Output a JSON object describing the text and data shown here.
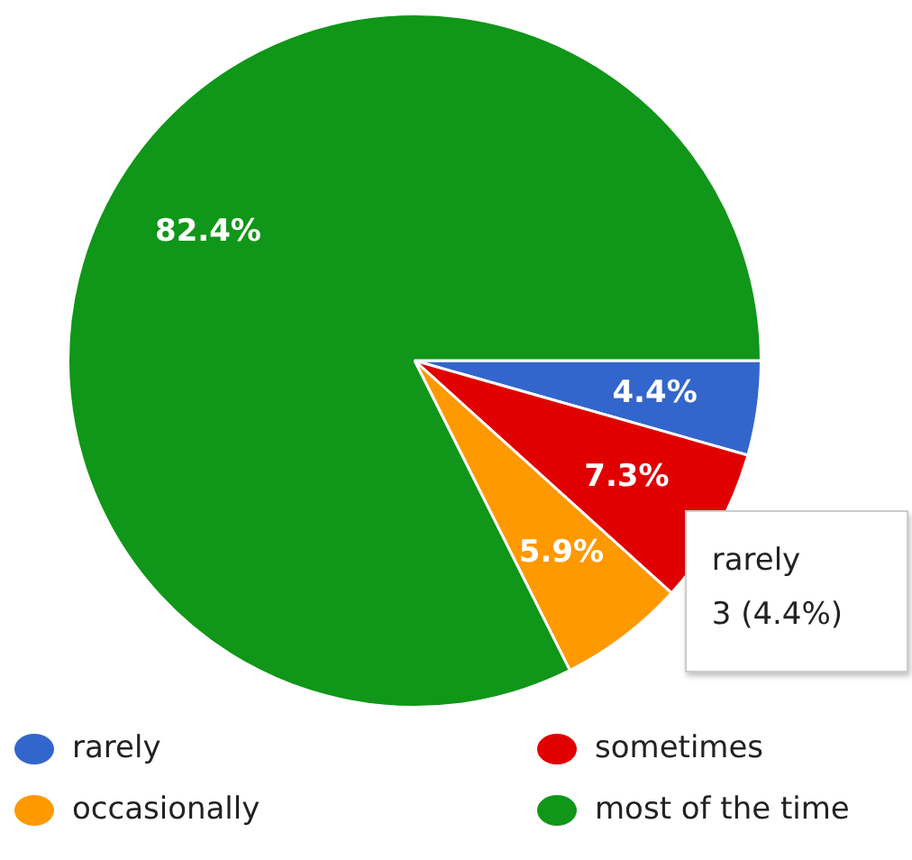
{
  "chart_data": {
    "type": "pie",
    "categories": [
      "rarely",
      "sometimes",
      "occasionally",
      "most of the time"
    ],
    "values": [
      4.4,
      7.3,
      5.9,
      82.4
    ],
    "colors": [
      "#3366cc",
      "#e00000",
      "#ff9900",
      "#109618"
    ],
    "value_labels": [
      "4.4%",
      "7.3%",
      "5.9%",
      "82.4%"
    ],
    "legend": "bottom",
    "annotations": [
      {
        "text": "rarely\n3 (4.4%)",
        "x": "rarely"
      }
    ]
  }
}
